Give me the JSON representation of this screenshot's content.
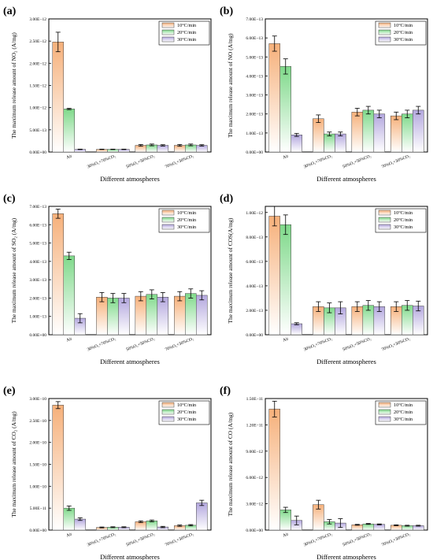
{
  "legend_labels": [
    "10°C/min",
    "20°C/min",
    "30°C/min"
  ],
  "series_colors": [
    "#f6b07a",
    "#7fd98a",
    "#b3a7de"
  ],
  "xlabel": "Different atmospheres",
  "categories": [
    "Air",
    "30%O₂+70%CO₂",
    "50%O₂+50%CO₂",
    "70%O₂+30%CO₂"
  ],
  "chart_data": [
    {
      "panel": "(a)",
      "type": "bar",
      "ylabel": "The maximum release amount of NO₂ (A/mg)",
      "ylim": [
        0,
        3e-12
      ],
      "yticks": [
        0,
        5e-13,
        1e-12,
        1.5e-12,
        2e-12,
        2.5e-12,
        3e-12
      ],
      "yticklabels": [
        "0.00E+00",
        "5.00E−13",
        "1.00E−12",
        "1.50E−12",
        "2.00E−12",
        "2.50E−12",
        "3.00E−12"
      ],
      "series": [
        {
          "name": "10°C/min",
          "values": [
            2.48e-12,
            6e-14,
            1.5e-13,
            1.5e-13
          ],
          "errors": [
            2.2e-13,
            5e-15,
            2e-14,
            2e-14
          ]
        },
        {
          "name": "20°C/min",
          "values": [
            9.7e-13,
            6e-14,
            1.6e-13,
            1.6e-13
          ],
          "errors": [
            1.5e-14,
            5e-15,
            2e-14,
            2e-14
          ]
        },
        {
          "name": "30°C/min",
          "values": [
            6e-14,
            6e-14,
            1.5e-13,
            1.5e-13
          ],
          "errors": [
            5e-15,
            5e-15,
            1.5e-14,
            1.5e-14
          ]
        }
      ]
    },
    {
      "panel": "(b)",
      "type": "bar",
      "ylabel": "The maximum release amount of NO (A/mg)",
      "ylim": [
        0,
        7e-13
      ],
      "yticks": [
        0,
        1e-13,
        2e-13,
        3e-13,
        4e-13,
        5e-13,
        6e-13,
        7e-13
      ],
      "yticklabels": [
        "0.00E+00",
        "1.00E−13",
        "2.00E−13",
        "3.00E−13",
        "4.00E−13",
        "5.00E−13",
        "6.00E−13",
        "7.00E−13"
      ],
      "series": [
        {
          "name": "10°C/min",
          "values": [
            5.7e-13,
            1.75e-13,
            2.1e-13,
            1.9e-13
          ],
          "errors": [
            4e-14,
            2e-14,
            2e-14,
            2e-14
          ]
        },
        {
          "name": "20°C/min",
          "values": [
            4.5e-13,
            9.5e-14,
            2.2e-13,
            2e-13
          ],
          "errors": [
            4e-14,
            1e-14,
            2e-14,
            2e-14
          ]
        },
        {
          "name": "30°C/min",
          "values": [
            9e-14,
            9.5e-14,
            2e-13,
            2.2e-13
          ],
          "errors": [
            8e-15,
            1e-14,
            2e-14,
            2e-14
          ]
        }
      ]
    },
    {
      "panel": "(c)",
      "type": "bar",
      "ylabel": "The maximum release amount of SO₂ (A/mg)",
      "ylim": [
        0,
        7e-13
      ],
      "yticks": [
        0,
        1e-13,
        2e-13,
        3e-13,
        4e-13,
        5e-13,
        6e-13,
        7e-13
      ],
      "yticklabels": [
        "0.00E+00",
        "1.00E−13",
        "2.00E−13",
        "3.00E−13",
        "4.00E−13",
        "5.00E−13",
        "6.00E−13",
        "7.00E−13"
      ],
      "series": [
        {
          "name": "10°C/min",
          "values": [
            6.6e-13,
            2.05e-13,
            2.1e-13,
            2.1e-13
          ],
          "errors": [
            2.5e-14,
            2.5e-14,
            2.5e-14,
            2.5e-14
          ]
        },
        {
          "name": "20°C/min",
          "values": [
            4.3e-13,
            2e-13,
            2.2e-13,
            2.25e-13
          ],
          "errors": [
            2e-14,
            2.5e-14,
            2.5e-14,
            2.5e-14
          ]
        },
        {
          "name": "30°C/min",
          "values": [
            9e-14,
            2e-13,
            2.05e-13,
            2.15e-13
          ],
          "errors": [
            2.5e-14,
            2.5e-14,
            2.5e-14,
            2.5e-14
          ]
        }
      ]
    },
    {
      "panel": "(d)",
      "type": "bar",
      "ylabel": "The maximum release amount of COS(A/mg)",
      "ylim": [
        0,
        1.05e-12
      ],
      "yticks": [
        0,
        2e-13,
        4e-13,
        6e-13,
        8e-13,
        1e-12
      ],
      "yticklabels": [
        "0.00E+00",
        "2.00E−13",
        "4.00E−13",
        "6.00E−13",
        "8.00E−13",
        "1.00E−12"
      ],
      "series": [
        {
          "name": "10°C/min",
          "values": [
            9.7e-13,
            2.3e-13,
            2.3e-13,
            2.3e-13
          ],
          "errors": [
            8e-14,
            4e-14,
            4e-14,
            4e-14
          ]
        },
        {
          "name": "20°C/min",
          "values": [
            9e-13,
            2.2e-13,
            2.4e-13,
            2.4e-13
          ],
          "errors": [
            8e-14,
            4e-14,
            4e-14,
            4e-14
          ]
        },
        {
          "name": "30°C/min",
          "values": [
            9e-14,
            2.2e-13,
            2.3e-13,
            2.35e-13
          ],
          "errors": [
            8e-15,
            5e-14,
            4e-14,
            4e-14
          ]
        }
      ]
    },
    {
      "panel": "(e)",
      "type": "bar",
      "ylabel": "The maximum release amount of CO₂ (A/mg)",
      "ylim": [
        0,
        3e-10
      ],
      "yticks": [
        0,
        5e-11,
        1e-10,
        1.5e-10,
        2e-10,
        2.5e-10,
        3e-10
      ],
      "yticklabels": [
        "0.00E+00",
        "5.00E−11",
        "1.00E−10",
        "1.50E−10",
        "2.00E−10",
        "2.50E−10",
        "3.00E−10"
      ],
      "series": [
        {
          "name": "10°C/min",
          "values": [
            2.85e-10,
            6e-12,
            1.9e-11,
            1e-11
          ],
          "errors": [
            8e-12,
            1e-12,
            2e-12,
            1.5e-12
          ]
        },
        {
          "name": "20°C/min",
          "values": [
            5e-11,
            6.5e-12,
            2.1e-11,
            1.1e-11
          ],
          "errors": [
            5e-12,
            1e-12,
            2e-12,
            1.5e-12
          ]
        },
        {
          "name": "30°C/min",
          "values": [
            2.5e-11,
            6.5e-12,
            7e-12,
            6.2e-11
          ],
          "errors": [
            3e-12,
            1e-12,
            1.5e-12,
            6e-12
          ]
        }
      ]
    },
    {
      "panel": "(f)",
      "type": "bar",
      "ylabel": "The maximum release amount of CO (A/mg)",
      "ylim": [
        0,
        1.5e-11
      ],
      "yticks": [
        0,
        3e-12,
        6e-12,
        9e-12,
        1.2e-11,
        1.5e-11
      ],
      "yticklabels": [
        "0.00E+00",
        "3.00E−12",
        "6.00E−12",
        "9.00E−12",
        "1.20E−11",
        "1.50E−11"
      ],
      "series": [
        {
          "name": "10°C/min",
          "values": [
            1.38e-11,
            2.9e-12,
            6e-13,
            5.5e-13
          ],
          "errors": [
            9e-13,
            5e-13,
            5e-14,
            5e-14
          ]
        },
        {
          "name": "20°C/min",
          "values": [
            2.3e-12,
            9.5e-13,
            7e-13,
            5e-13
          ],
          "errors": [
            3e-13,
            2.5e-13,
            5e-14,
            5e-14
          ]
        },
        {
          "name": "30°C/min",
          "values": [
            1.1e-12,
            8e-13,
            6.5e-13,
            5e-13
          ],
          "errors": [
            5e-13,
            5e-13,
            5e-14,
            5e-14
          ]
        }
      ]
    }
  ]
}
